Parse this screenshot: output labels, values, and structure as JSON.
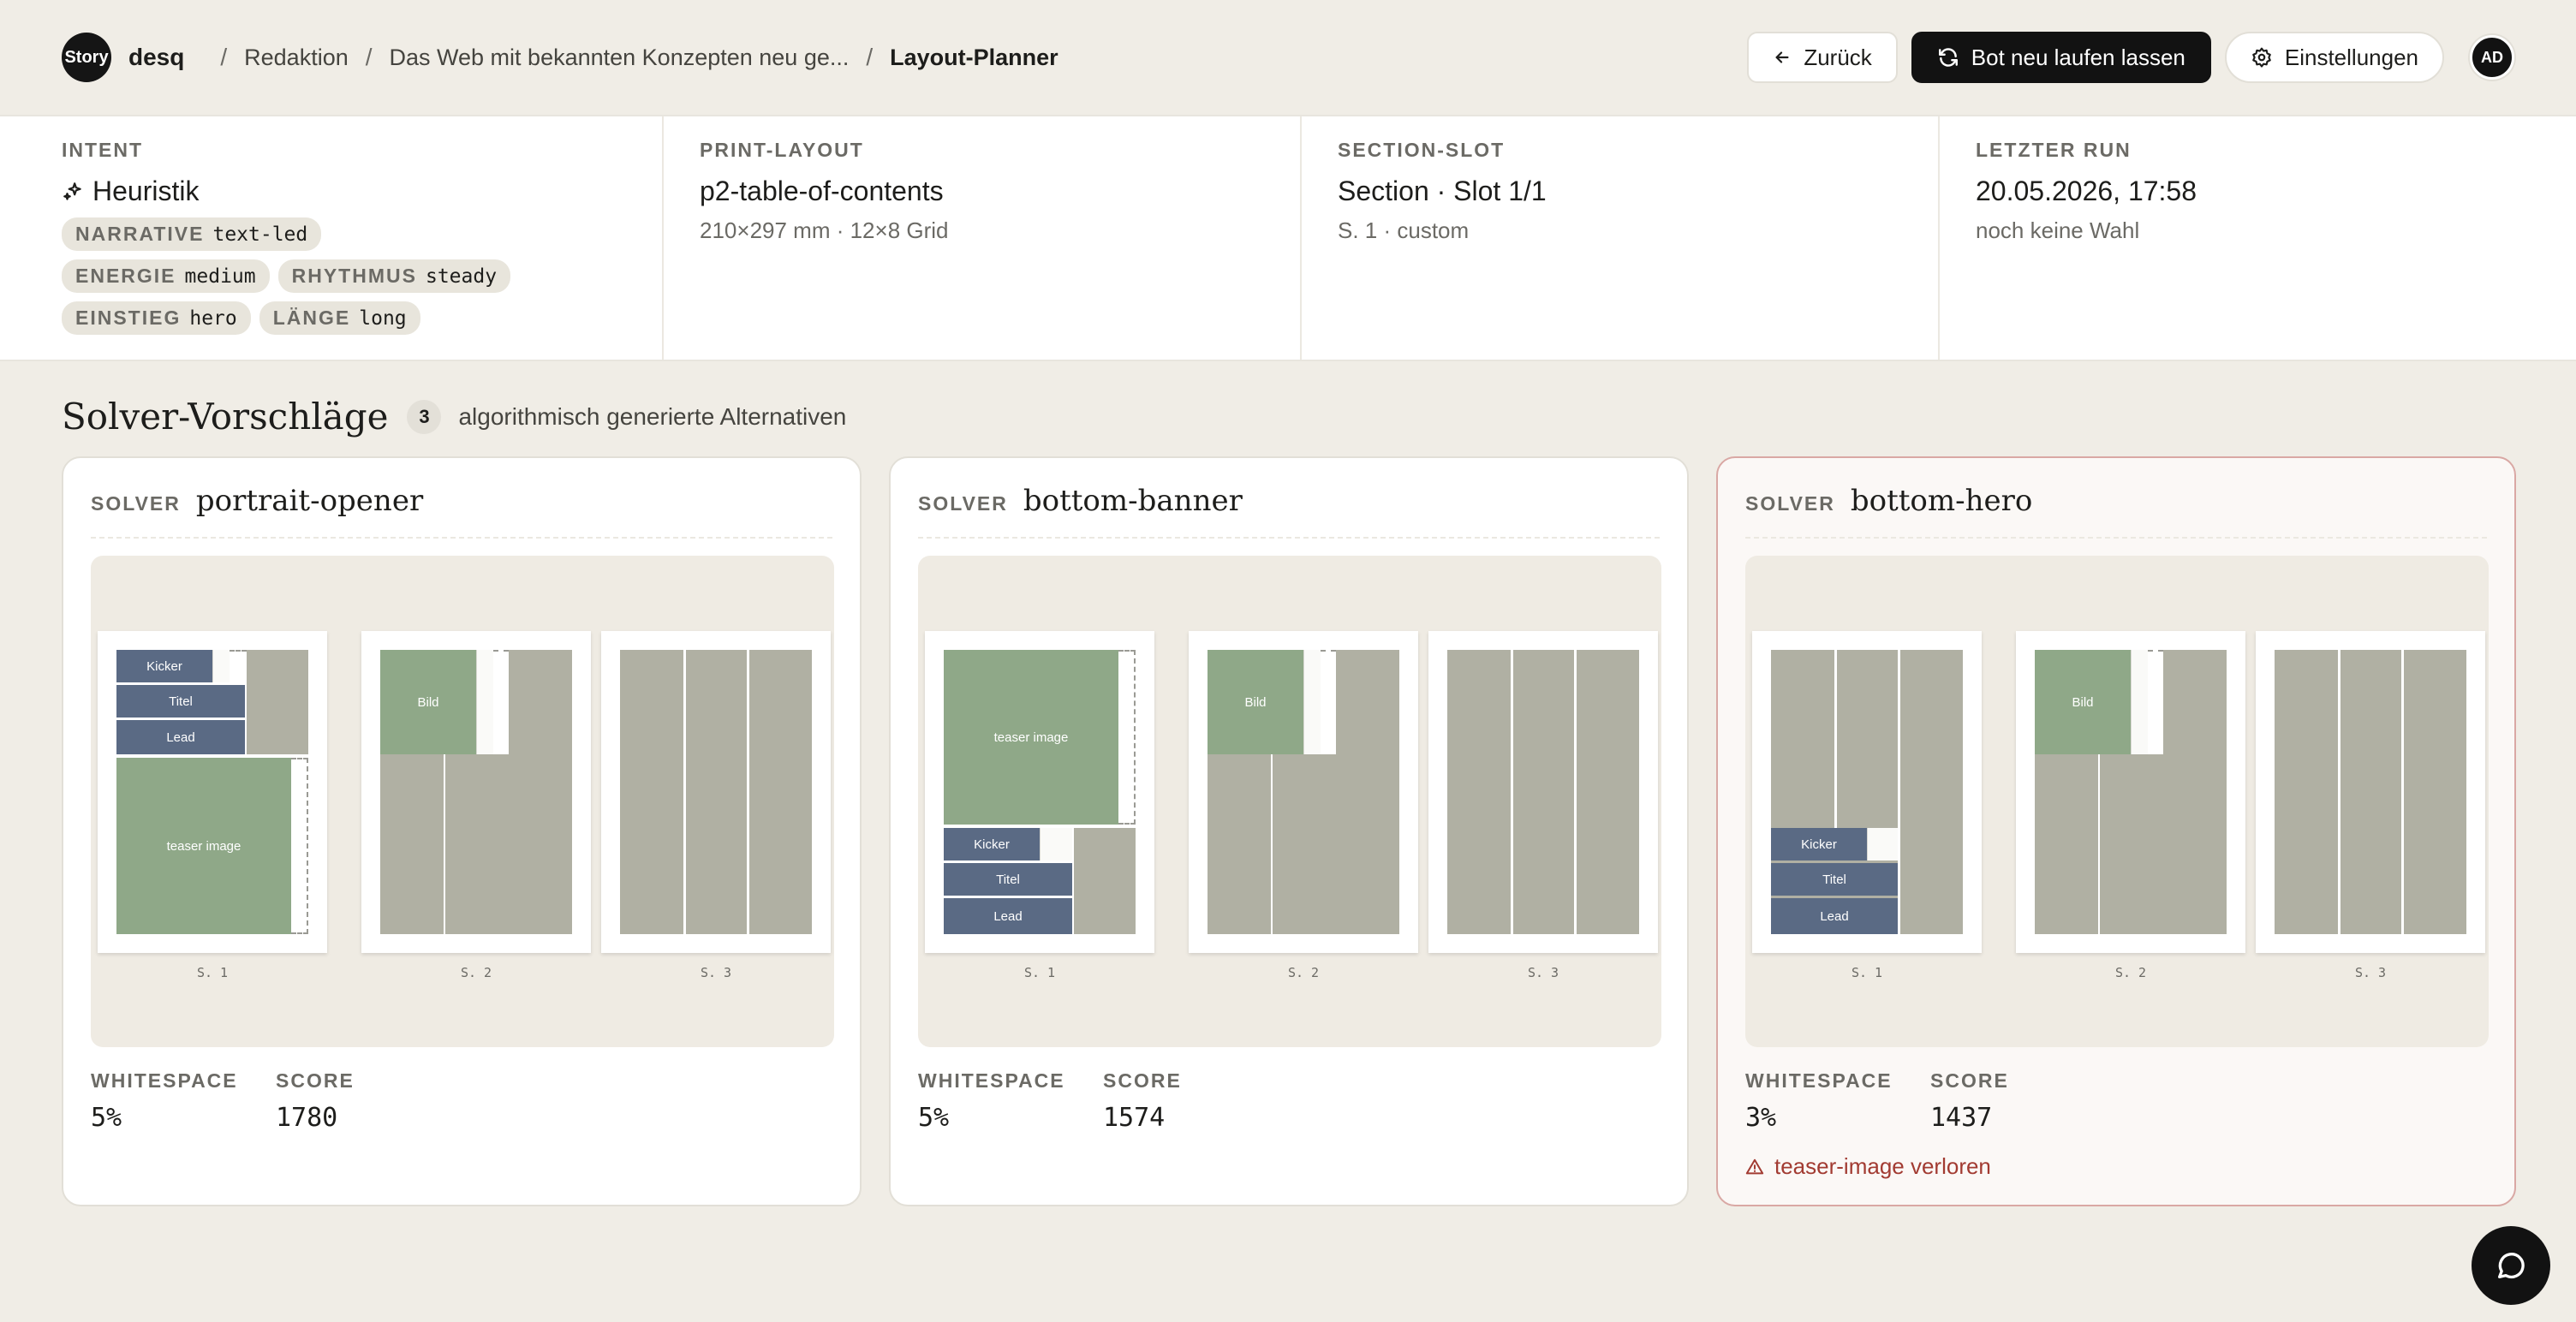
{
  "header": {
    "logo_text": "Story",
    "brand": "desq",
    "breadcrumb": [
      "Redaktion",
      "Das Web mit bekannten Konzepten neu ge...",
      "Layout-Planner"
    ],
    "back_label": "Zurück",
    "run_label": "Bot neu laufen lassen",
    "settings_label": "Einstellungen",
    "avatar": "AD"
  },
  "info": {
    "intent": {
      "label": "INTENT",
      "value": "Heuristik",
      "chips": [
        {
          "k": "NARRATIVE",
          "v": "text-led"
        },
        {
          "k": "ENERGIE",
          "v": "medium"
        },
        {
          "k": "RHYTHMUS",
          "v": "steady"
        },
        {
          "k": "EINSTIEG",
          "v": "hero"
        },
        {
          "k": "LÄNGE",
          "v": "long"
        }
      ]
    },
    "print_layout": {
      "label": "PRINT-LAYOUT",
      "value": "p2-table-of-contents",
      "sub": "210×297 mm · 12×8 Grid"
    },
    "section_slot": {
      "label": "SECTION-SLOT",
      "value": "Section · Slot 1/1",
      "sub": "S. 1 · custom"
    },
    "last_run": {
      "label": "LETZTER RUN",
      "value": "20.05.2026, 17:58",
      "sub": "noch keine Wahl"
    }
  },
  "section": {
    "title": "Solver-Vorschläge",
    "count": "3",
    "subtitle": "algorithmisch generierte Alternativen"
  },
  "cards": [
    {
      "solver_label": "SOLVER",
      "name": "portrait-opener",
      "pages": [
        "S. 1",
        "S. 2",
        "S. 3"
      ],
      "blocks": {
        "kicker": "Kicker",
        "title": "Titel",
        "lead": "Lead",
        "teaser": "teaser image",
        "bild": "Bild"
      },
      "whitespace_label": "WHITESPACE",
      "whitespace": "5%",
      "score_label": "SCORE",
      "score": "1780"
    },
    {
      "solver_label": "SOLVER",
      "name": "bottom-banner",
      "pages": [
        "S. 1",
        "S. 2",
        "S. 3"
      ],
      "blocks": {
        "kicker": "Kicker",
        "title": "Titel",
        "lead": "Lead",
        "teaser": "teaser image",
        "bild": "Bild"
      },
      "whitespace_label": "WHITESPACE",
      "whitespace": "5%",
      "score_label": "SCORE",
      "score": "1574"
    },
    {
      "solver_label": "SOLVER",
      "name": "bottom-hero",
      "pages": [
        "S. 1",
        "S. 2",
        "S. 3"
      ],
      "blocks": {
        "kicker": "Kicker",
        "title": "Titel",
        "lead": "Lead",
        "bild": "Bild"
      },
      "whitespace_label": "WHITESPACE",
      "whitespace": "3%",
      "score_label": "SCORE",
      "score": "1437",
      "warning": "teaser-image verloren"
    }
  ]
}
